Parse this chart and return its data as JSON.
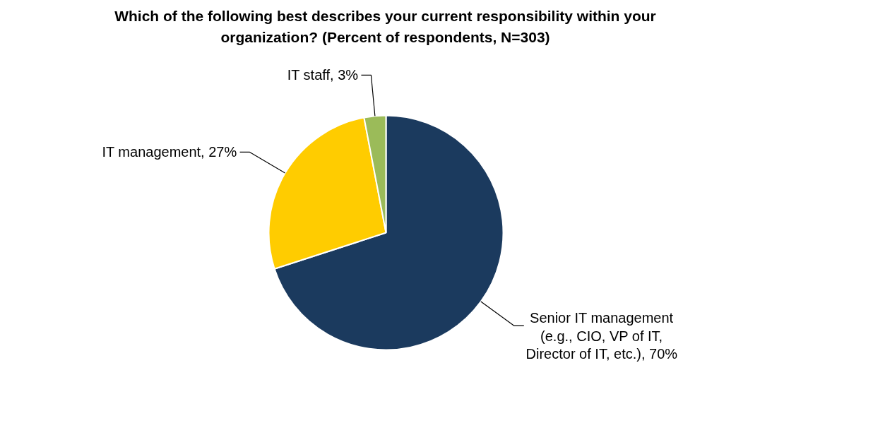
{
  "chart_data": {
    "type": "pie",
    "title": "Which of the following best describes your current responsibility within your organization? (Percent of respondents, N=303)",
    "categories": [
      "Senior IT management (e.g., CIO, VP of IT, Director of IT, etc.)",
      "IT management",
      "IT staff"
    ],
    "values": [
      70,
      27,
      3
    ],
    "colors": [
      "#1b3a5e",
      "#ffcc00",
      "#9bbb59"
    ],
    "value_labels": [
      "70%",
      "27%",
      "3%"
    ]
  }
}
